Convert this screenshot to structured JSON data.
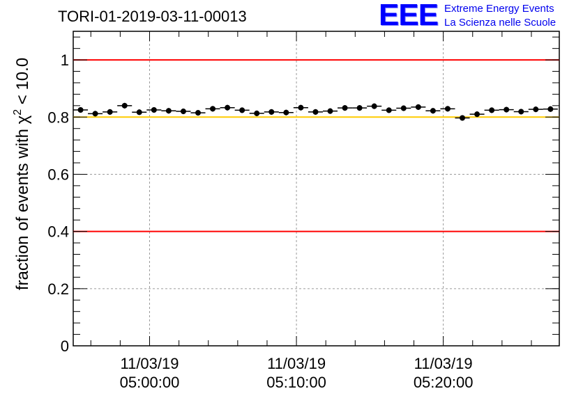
{
  "title": "TORI-01-2019-03-11-00013",
  "logo": {
    "mark": "EEE",
    "line1": "Extreme Energy Events",
    "line2": "La Scienza nelle Scuole",
    "color": "#0000ff"
  },
  "chart_data": {
    "type": "scatter",
    "ylabel_prefix": "fraction of events with ",
    "ylabel_symbol": "χ",
    "ylabel_sup": "2",
    "ylabel_suffix": " < 10.0",
    "ylim": [
      0,
      1.1
    ],
    "yticks": [
      {
        "value": 0,
        "label": "0"
      },
      {
        "value": 0.2,
        "label": "0.2"
      },
      {
        "value": 0.4,
        "label": "0.4"
      },
      {
        "value": 0.6,
        "label": "0.6"
      },
      {
        "value": 0.8,
        "label": "0.8"
      },
      {
        "value": 1,
        "label": "1"
      }
    ],
    "xlim_minutes": [
      -5.2,
      27.9
    ],
    "xticks": [
      {
        "minute": 0,
        "date": "11/03/19",
        "time": "05:00:00"
      },
      {
        "minute": 10,
        "date": "11/03/19",
        "time": "05:10:00"
      },
      {
        "minute": 20,
        "date": "11/03/19",
        "time": "05:20:00"
      }
    ],
    "x_minor_step_minutes": 2,
    "grid": true,
    "reference_lines": [
      {
        "value": 1.0,
        "color": "#ff0000"
      },
      {
        "value": 0.8,
        "color": "#ffcc00"
      },
      {
        "value": 0.4,
        "color": "#ff0000"
      }
    ],
    "series": [
      {
        "color": "#000000",
        "bin_width_minutes": 1,
        "x_start_minutes": -4.7,
        "values": [
          0.825,
          0.812,
          0.818,
          0.84,
          0.817,
          0.825,
          0.822,
          0.82,
          0.815,
          0.829,
          0.833,
          0.824,
          0.813,
          0.818,
          0.816,
          0.833,
          0.818,
          0.821,
          0.832,
          0.832,
          0.838,
          0.824,
          0.831,
          0.835,
          0.822,
          0.829,
          0.797,
          0.81,
          0.824,
          0.826,
          0.819,
          0.827,
          0.828
        ]
      }
    ]
  }
}
